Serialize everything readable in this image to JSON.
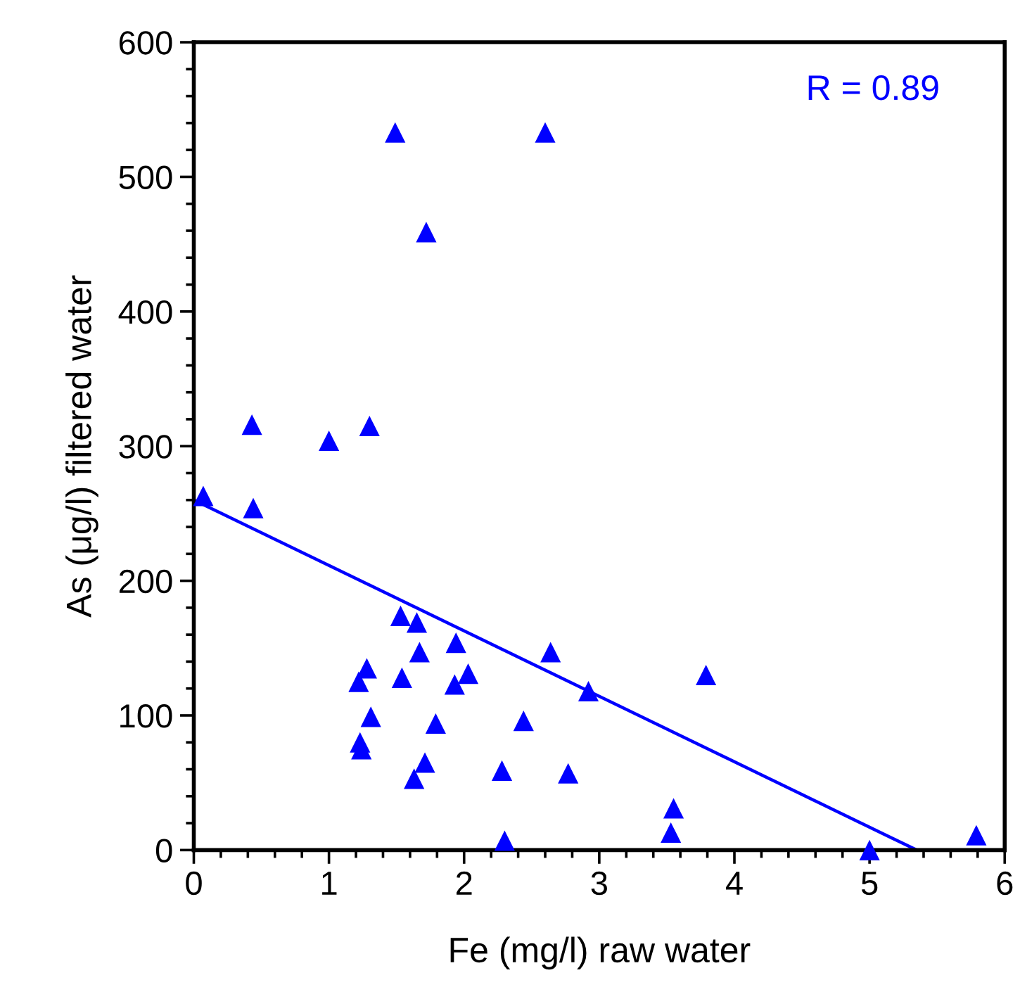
{
  "chart_data": {
    "type": "scatter",
    "xlabel": "Fe (mg/l) raw water",
    "ylabel": "As (μg/l) filtered water",
    "xlim": [
      0,
      6
    ],
    "xticks": [
      0,
      1,
      2,
      3,
      4,
      5,
      6
    ],
    "ylim": [
      0,
      600
    ],
    "yticks": [
      0,
      100,
      200,
      300,
      400,
      500,
      600
    ],
    "grid": false,
    "marker": "triangle",
    "annotations": [
      "R = 0.89"
    ],
    "series": [
      {
        "color": "#0000ff",
        "x": [
          0.07,
          0.43,
          0.44,
          1.0,
          1.3,
          1.49,
          1.72,
          2.6,
          1.53,
          1.65,
          1.67,
          1.94,
          1.28,
          1.22,
          1.54,
          1.93,
          2.03,
          1.31,
          1.79,
          1.23,
          1.24,
          1.71,
          1.63,
          2.28,
          2.44,
          2.64,
          2.92,
          2.77,
          2.3,
          3.79,
          3.55,
          3.53,
          5.0,
          5.79
        ],
        "values": [
          263,
          316,
          254,
          304,
          315,
          533,
          459,
          533,
          174,
          169,
          147,
          154,
          135,
          125,
          128,
          123,
          131,
          99,
          94,
          80,
          75,
          65,
          53,
          59,
          96,
          147,
          118,
          57,
          7,
          130,
          31,
          13,
          0,
          11
        ]
      },
      {
        "type": "line",
        "color": "#0000ff",
        "x": [
          0,
          5.35
        ],
        "values": [
          260,
          0
        ],
        "marker": "none"
      }
    ]
  }
}
